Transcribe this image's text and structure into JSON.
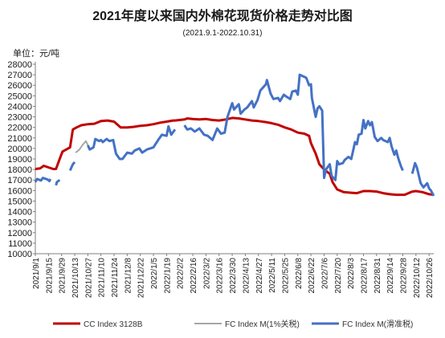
{
  "chart_data": {
    "type": "line",
    "title": "2021年度以来国内外棉花现货价格走势对比图",
    "subtitle": "(2021.9.1-2022.10.31)",
    "ylabel": "单位：元/吨",
    "xlabel": "",
    "ylim": [
      10000,
      28000
    ],
    "yticks": [
      10000,
      11000,
      12000,
      13000,
      14000,
      15000,
      16000,
      17000,
      18000,
      19000,
      20000,
      21000,
      22000,
      23000,
      24000,
      25000,
      26000,
      27000,
      28000
    ],
    "x_tick_labels": [
      "2021/9/1",
      "2021/9/15",
      "2021/9/29",
      "2021/10/13",
      "2021/10/27",
      "2021/11/10",
      "2021/11/24",
      "2021/12/8",
      "2021/12/22",
      "2022/1/5",
      "2022/1/19",
      "2022/2/2",
      "2022/2/16",
      "2022/3/2",
      "2022/3/16",
      "2022/3/30",
      "2022/4/13",
      "2022/4/27",
      "2022/5/11",
      "2022/5/25",
      "2022/6/8",
      "2022/6/22",
      "2022/7/6",
      "2022/7/20",
      "2022/8/3",
      "2022/8/17",
      "2022/8/31",
      "2022/9/14",
      "2022/9/28",
      "2022/10/12",
      "2022/10/26"
    ],
    "grid": false,
    "legend_position": "bottom",
    "x_domain": [
      "2021-09-01",
      "2022-10-31"
    ],
    "series": [
      {
        "name": "CC Index 3128B",
        "color": "#C00000",
        "points": [
          [
            "2021-09-01",
            18050
          ],
          [
            "2021-09-06",
            18100
          ],
          [
            "2021-09-10",
            18350
          ],
          [
            "2021-09-15",
            18200
          ],
          [
            "2021-09-20",
            18050
          ],
          [
            "2021-09-23",
            18050
          ],
          [
            "2021-09-27",
            19000
          ],
          [
            "2021-09-30",
            19700
          ],
          [
            "2021-10-08",
            20100
          ],
          [
            "2021-10-11",
            21800
          ],
          [
            "2021-10-15",
            22000
          ],
          [
            "2021-10-20",
            22200
          ],
          [
            "2021-10-27",
            22300
          ],
          [
            "2021-11-03",
            22350
          ],
          [
            "2021-11-10",
            22600
          ],
          [
            "2021-11-17",
            22650
          ],
          [
            "2021-11-24",
            22550
          ],
          [
            "2021-12-01",
            22000
          ],
          [
            "2021-12-08",
            22000
          ],
          [
            "2021-12-15",
            22050
          ],
          [
            "2021-12-22",
            22150
          ],
          [
            "2021-12-29",
            22200
          ],
          [
            "2022-01-05",
            22300
          ],
          [
            "2022-01-12",
            22450
          ],
          [
            "2022-01-19",
            22550
          ],
          [
            "2022-01-26",
            22650
          ],
          [
            "2022-01-28",
            22650
          ],
          [
            "2022-02-07",
            22750
          ],
          [
            "2022-02-10",
            22850
          ],
          [
            "2022-02-16",
            22800
          ],
          [
            "2022-02-23",
            22750
          ],
          [
            "2022-03-02",
            22800
          ],
          [
            "2022-03-09",
            22700
          ],
          [
            "2022-03-16",
            22650
          ],
          [
            "2022-03-23",
            22750
          ],
          [
            "2022-03-30",
            22900
          ],
          [
            "2022-04-06",
            22850
          ],
          [
            "2022-04-13",
            22750
          ],
          [
            "2022-04-20",
            22650
          ],
          [
            "2022-04-27",
            22600
          ],
          [
            "2022-05-05",
            22500
          ],
          [
            "2022-05-11",
            22400
          ],
          [
            "2022-05-18",
            22250
          ],
          [
            "2022-05-25",
            22000
          ],
          [
            "2022-06-01",
            21800
          ],
          [
            "2022-06-08",
            21500
          ],
          [
            "2022-06-15",
            21400
          ],
          [
            "2022-06-20",
            21200
          ],
          [
            "2022-06-22",
            20500
          ],
          [
            "2022-06-27",
            19500
          ],
          [
            "2022-07-01",
            18500
          ],
          [
            "2022-07-06",
            18000
          ],
          [
            "2022-07-12",
            17600
          ],
          [
            "2022-07-15",
            16800
          ],
          [
            "2022-07-20",
            16100
          ],
          [
            "2022-07-27",
            15850
          ],
          [
            "2022-08-03",
            15800
          ],
          [
            "2022-08-10",
            15750
          ],
          [
            "2022-08-17",
            15950
          ],
          [
            "2022-08-24",
            15950
          ],
          [
            "2022-08-31",
            15900
          ],
          [
            "2022-09-07",
            15750
          ],
          [
            "2022-09-14",
            15650
          ],
          [
            "2022-09-21",
            15600
          ],
          [
            "2022-09-28",
            15600
          ],
          [
            "2022-09-30",
            15600
          ],
          [
            "2022-10-08",
            15900
          ],
          [
            "2022-10-12",
            15950
          ],
          [
            "2022-10-19",
            15850
          ],
          [
            "2022-10-26",
            15650
          ],
          [
            "2022-10-31",
            15600
          ]
        ]
      },
      {
        "name": "FC Index M(1%关税)",
        "color": "#A6A6A6",
        "points": [
          [
            "2021-10-14",
            19600
          ],
          [
            "2021-10-18",
            19900
          ],
          [
            "2021-10-21",
            20300
          ],
          [
            "2021-10-25",
            20700
          ],
          [
            "2021-10-27",
            20300
          ]
        ]
      },
      {
        "name": "FC Index M(滑准税)",
        "color": "#4472C4",
        "segments": [
          [
            [
              "2021-09-01",
              16800
            ],
            [
              "2021-09-03",
              17100
            ],
            [
              "2021-09-07",
              16950
            ],
            [
              "2021-09-09",
              17200
            ],
            [
              "2021-09-14",
              17050
            ],
            [
              "2021-09-16",
              16900
            ],
            [
              "2021-09-17",
              17100
            ]
          ],
          [
            [
              "2021-09-23",
              16500
            ],
            [
              "2021-09-24",
              16800
            ],
            [
              "2021-09-27",
              17000
            ]
          ],
          [
            [
              "2021-10-08",
              17900
            ],
            [
              "2021-10-11",
              18500
            ],
            [
              "2021-10-13",
              18700
            ]
          ],
          [
            [
              "2021-10-27",
              20300
            ],
            [
              "2021-10-29",
              19900
            ],
            [
              "2021-11-02",
              20100
            ],
            [
              "2021-11-04",
              20900
            ],
            [
              "2021-11-08",
              20700
            ],
            [
              "2021-11-10",
              20800
            ],
            [
              "2021-11-12",
              20600
            ],
            [
              "2021-11-16",
              20900
            ],
            [
              "2021-11-19",
              20700
            ],
            [
              "2021-11-23",
              20800
            ],
            [
              "2021-11-26",
              19500
            ],
            [
              "2021-11-30",
              19000
            ],
            [
              "2021-12-03",
              19000
            ],
            [
              "2021-12-08",
              19600
            ],
            [
              "2021-12-13",
              19500
            ],
            [
              "2021-12-16",
              19800
            ],
            [
              "2021-12-21",
              20000
            ],
            [
              "2021-12-24",
              19600
            ],
            [
              "2021-12-29",
              19900
            ],
            [
              "2022-01-05",
              20100
            ],
            [
              "2022-01-10",
              20800
            ],
            [
              "2022-01-14",
              21300
            ],
            [
              "2022-01-19",
              21200
            ],
            [
              "2022-01-21",
              22100
            ],
            [
              "2022-01-24",
              21300
            ],
            [
              "2022-01-28",
              21800
            ]
          ],
          [
            [
              "2022-02-07",
              22200
            ],
            [
              "2022-02-10",
              21800
            ],
            [
              "2022-02-14",
              21900
            ],
            [
              "2022-02-18",
              21600
            ],
            [
              "2022-02-23",
              21900
            ],
            [
              "2022-02-28",
              21300
            ],
            [
              "2022-03-04",
              21200
            ],
            [
              "2022-03-09",
              20800
            ],
            [
              "2022-03-14",
              21900
            ],
            [
              "2022-03-18",
              21400
            ],
            [
              "2022-03-22",
              21500
            ],
            [
              "2022-03-25",
              23000
            ],
            [
              "2022-03-30",
              24300
            ],
            [
              "2022-04-01",
              23700
            ],
            [
              "2022-04-06",
              24200
            ],
            [
              "2022-04-08",
              23300
            ],
            [
              "2022-04-12",
              23700
            ],
            [
              "2022-04-15",
              23900
            ],
            [
              "2022-04-20",
              24500
            ],
            [
              "2022-04-22",
              23900
            ],
            [
              "2022-04-26",
              24600
            ],
            [
              "2022-04-29",
              25500
            ],
            [
              "2022-05-05",
              26100
            ],
            [
              "2022-05-06",
              26500
            ],
            [
              "2022-05-10",
              25200
            ],
            [
              "2022-05-13",
              24700
            ],
            [
              "2022-05-18",
              24800
            ],
            [
              "2022-05-20",
              24500
            ],
            [
              "2022-05-24",
              25100
            ],
            [
              "2022-05-27",
              24900
            ],
            [
              "2022-05-31",
              24700
            ],
            [
              "2022-06-02",
              25400
            ],
            [
              "2022-06-06",
              25500
            ],
            [
              "2022-06-08",
              25100
            ],
            [
              "2022-06-10",
              27000
            ],
            [
              "2022-06-15",
              26800
            ],
            [
              "2022-06-17",
              26700
            ],
            [
              "2022-06-20",
              26000
            ],
            [
              "2022-06-22",
              26100
            ],
            [
              "2022-06-23",
              24800
            ],
            [
              "2022-06-27",
              23000
            ],
            [
              "2022-06-29",
              23800
            ],
            [
              "2022-07-01",
              24000
            ],
            [
              "2022-07-04",
              23600
            ],
            [
              "2022-07-06",
              17200
            ],
            [
              "2022-07-08",
              18000
            ],
            [
              "2022-07-12",
              18500
            ],
            [
              "2022-07-14",
              17400
            ],
            [
              "2022-07-18",
              17000
            ],
            [
              "2022-07-20",
              18800
            ],
            [
              "2022-07-22",
              18500
            ],
            [
              "2022-07-26",
              18600
            ],
            [
              "2022-07-28",
              18900
            ],
            [
              "2022-08-01",
              19200
            ],
            [
              "2022-08-04",
              19000
            ],
            [
              "2022-08-08",
              20600
            ],
            [
              "2022-08-10",
              20400
            ],
            [
              "2022-08-12",
              21300
            ],
            [
              "2022-08-15",
              21400
            ],
            [
              "2022-08-17",
              22700
            ],
            [
              "2022-08-19",
              21900
            ],
            [
              "2022-08-22",
              22600
            ],
            [
              "2022-08-24",
              22200
            ],
            [
              "2022-08-26",
              22500
            ],
            [
              "2022-08-29",
              21100
            ],
            [
              "2022-09-01",
              20700
            ],
            [
              "2022-09-05",
              21000
            ],
            [
              "2022-09-07",
              20800
            ],
            [
              "2022-09-12",
              20600
            ],
            [
              "2022-09-14",
              21000
            ],
            [
              "2022-09-16",
              20200
            ],
            [
              "2022-09-19",
              19400
            ],
            [
              "2022-09-21",
              19800
            ],
            [
              "2022-09-23",
              19100
            ],
            [
              "2022-09-26",
              18300
            ],
            [
              "2022-09-28",
              17900
            ]
          ],
          [
            [
              "2022-10-08",
              17600
            ],
            [
              "2022-10-11",
              18600
            ],
            [
              "2022-10-13",
              18200
            ],
            [
              "2022-10-17",
              16700
            ],
            [
              "2022-10-20",
              16300
            ],
            [
              "2022-10-24",
              16700
            ],
            [
              "2022-10-26",
              16200
            ],
            [
              "2022-10-28",
              16000
            ],
            [
              "2022-10-31",
              15500
            ]
          ]
        ]
      }
    ]
  }
}
